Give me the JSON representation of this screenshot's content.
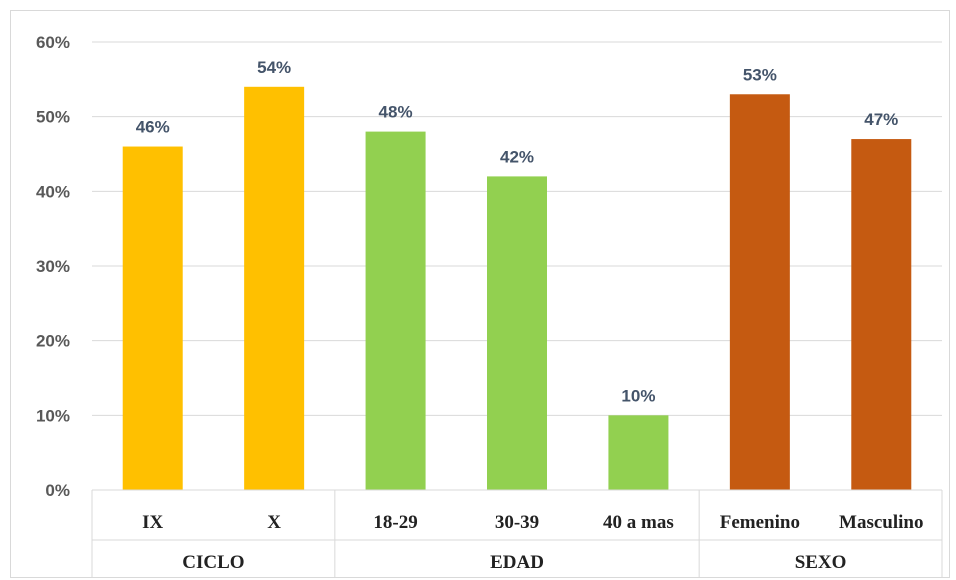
{
  "chart_data": {
    "type": "bar",
    "title": "",
    "xlabel": "",
    "ylabel": "",
    "ylim": [
      0,
      60
    ],
    "y_ticks": [
      "0%",
      "10%",
      "20%",
      "30%",
      "40%",
      "50%",
      "60%"
    ],
    "grid": true,
    "legend": "none",
    "groups": [
      {
        "name": "CICLO",
        "color": "#ffc000",
        "categories": [
          "IX",
          "X"
        ],
        "values": [
          46,
          54
        ],
        "labels": [
          "46%",
          "54%"
        ]
      },
      {
        "name": "EDAD",
        "color": "#92d050",
        "categories": [
          "18-29",
          "30-39",
          "40 a mas"
        ],
        "values": [
          48,
          42,
          10
        ],
        "labels": [
          "48%",
          "42%",
          "10%"
        ]
      },
      {
        "name": "SEXO",
        "color": "#c55a11",
        "categories": [
          "Femenino",
          "Masculino"
        ],
        "values": [
          53,
          47
        ],
        "labels": [
          "53%",
          "47%"
        ]
      }
    ]
  }
}
